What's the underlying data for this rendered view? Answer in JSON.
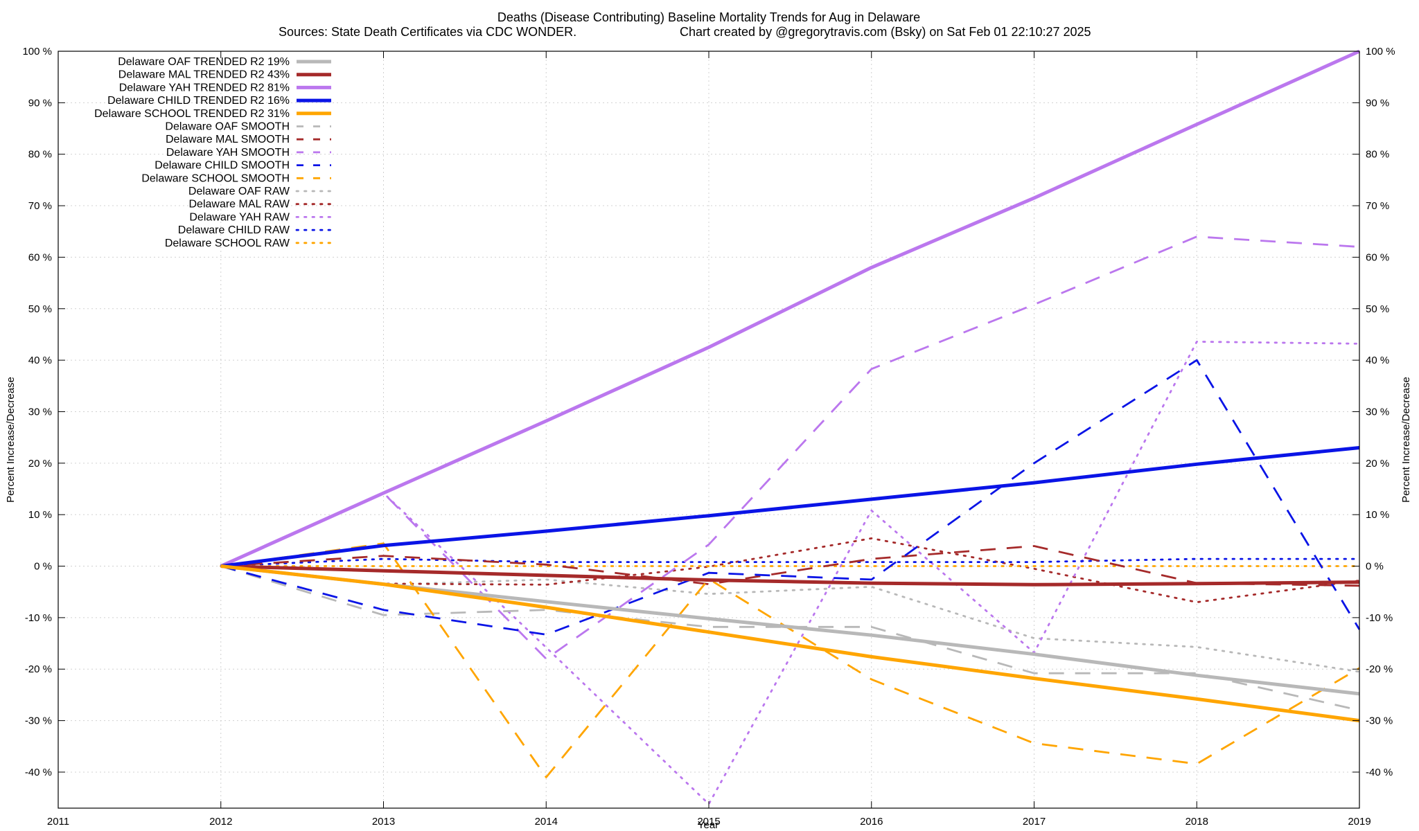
{
  "chart_data": {
    "type": "line",
    "title_line1": "Deaths (Disease Contributing)  Baseline Mortality Trends for Aug in Delaware",
    "title_line2_left": "Sources: State Death Certificates via CDC WONDER.",
    "title_line2_right": "Chart created by @gregorytravis.com (Bsky) on Sat Feb 01 22:10:27 2025",
    "xlabel": "Year",
    "ylabel": "Percent Increase/Decrease",
    "y2label": "Percent Increase/Decrease",
    "xlim": [
      2011,
      2019
    ],
    "ylim": [
      -47,
      100
    ],
    "x_ticks": [
      2011,
      2012,
      2013,
      2014,
      2015,
      2016,
      2017,
      2018,
      2019
    ],
    "x_tick_labels": [
      "2011",
      "2012",
      "2013",
      "2014",
      "2015",
      "2016",
      "2017",
      "2018",
      "2019"
    ],
    "y_ticks": [
      -40,
      -30,
      -20,
      -10,
      0,
      10,
      20,
      30,
      40,
      50,
      60,
      70,
      80,
      90,
      100
    ],
    "y_tick_labels": [
      "-40 %",
      "-30 %",
      "-20 %",
      "-10 %",
      "0 %",
      "10 %",
      "20 %",
      "30 %",
      "40 %",
      "50 %",
      "60 %",
      "70 %",
      "80 %",
      "90 %",
      "100 %"
    ],
    "grid": true,
    "legend_position": "top-left",
    "series": [
      {
        "name": "Delaware OAF TRENDED R2  19%",
        "style": "solid",
        "color": "#b8b8b8",
        "x": [
          2012,
          2013,
          2014,
          2015,
          2016,
          2017,
          2018,
          2019
        ],
        "values": [
          0,
          -3.5,
          -6.9,
          -10.2,
          -13.4,
          -17.1,
          -21.2,
          -24.8
        ]
      },
      {
        "name": "Delaware MAL TRENDED R2  43%",
        "style": "solid",
        "color": "#a52a2a",
        "x": [
          2012,
          2013,
          2014,
          2015,
          2016,
          2017,
          2018,
          2019
        ],
        "values": [
          0,
          -0.9,
          -1.8,
          -2.7,
          -3.3,
          -3.6,
          -3.4,
          -3.1
        ]
      },
      {
        "name": "Delaware YAH TRENDED R2  81%",
        "style": "solid",
        "color": "#bb77ee",
        "x": [
          2012,
          2013,
          2014,
          2015,
          2016,
          2017,
          2018,
          2019
        ],
        "values": [
          0,
          14.2,
          28.2,
          42.5,
          58,
          71.5,
          85.8,
          100
        ]
      },
      {
        "name": "Delaware CHILD TRENDED R2  16%",
        "style": "solid",
        "color": "#0a14e6",
        "x": [
          2012,
          2013,
          2014,
          2015,
          2016,
          2017,
          2018,
          2019
        ],
        "values": [
          0,
          4,
          6.8,
          9.8,
          13,
          16.2,
          19.8,
          23
        ]
      },
      {
        "name": "Delaware SCHOOL TRENDED R2  31%",
        "style": "solid",
        "color": "#ffa500",
        "x": [
          2012,
          2013,
          2014,
          2015,
          2016,
          2017,
          2018,
          2019
        ],
        "values": [
          0,
          -3.5,
          -8,
          -12.8,
          -17.6,
          -21.8,
          -25.8,
          -30
        ]
      },
      {
        "name": "Delaware OAF SMOOTH",
        "style": "dashed",
        "color": "#b8b8b8",
        "x": [
          2012,
          2013,
          2014,
          2015,
          2016,
          2017,
          2018,
          2019
        ],
        "values": [
          0,
          -9.5,
          -8.5,
          -11.8,
          -11.8,
          -20.8,
          -20.8,
          -28
        ]
      },
      {
        "name": "Delaware MAL SMOOTH",
        "style": "dashed",
        "color": "#a52a2a",
        "x": [
          2012,
          2013,
          2014,
          2015,
          2016,
          2017,
          2018,
          2019
        ],
        "values": [
          0,
          2,
          0.3,
          -3.5,
          1.4,
          3.9,
          -3.3,
          -3.8
        ]
      },
      {
        "name": "Delaware YAH SMOOTH",
        "style": "dashed",
        "color": "#bb77ee",
        "x": [
          2012,
          2013,
          2014,
          2015,
          2016,
          2017,
          2018,
          2019
        ],
        "values": [
          0,
          14.2,
          -18,
          4.2,
          38.3,
          50.8,
          64,
          62
        ]
      },
      {
        "name": "Delaware CHILD SMOOTH",
        "style": "dashed",
        "color": "#0a14e6",
        "x": [
          2012,
          2013,
          2014,
          2015,
          2016,
          2017,
          2018,
          2019
        ],
        "values": [
          0,
          -8.5,
          -13.3,
          -1.3,
          -2.6,
          20,
          40,
          -12.3
        ]
      },
      {
        "name": "Delaware SCHOOL SMOOTH",
        "style": "dashed",
        "color": "#ffa500",
        "x": [
          2012,
          2013,
          2014,
          2015,
          2016,
          2017,
          2018,
          2019
        ],
        "values": [
          0,
          4.4,
          -41,
          -2.5,
          -22,
          -34.4,
          -38.4,
          -19.8
        ]
      },
      {
        "name": "Delaware OAF RAW",
        "style": "dotted",
        "color": "#b8b8b8",
        "x": [
          2012,
          2013,
          2014,
          2015,
          2016,
          2017,
          2018,
          2019
        ],
        "values": [
          0,
          -3.6,
          -2.6,
          -5.4,
          -4,
          -14,
          -15.7,
          -20.5
        ]
      },
      {
        "name": "Delaware MAL RAW",
        "style": "dotted",
        "color": "#a52a2a",
        "x": [
          2012,
          2013,
          2014,
          2015,
          2016,
          2017,
          2018,
          2019
        ],
        "values": [
          0,
          -3.4,
          -3.6,
          -0.1,
          5.4,
          -0.5,
          -7,
          -2.8
        ]
      },
      {
        "name": "Delaware YAH RAW",
        "style": "dotted",
        "color": "#bb77ee",
        "x": [
          2012,
          2013,
          2014,
          2015,
          2016,
          2017,
          2018,
          2019
        ],
        "values": [
          0,
          14.2,
          -15.8,
          -46.2,
          10.8,
          -16.8,
          43.6,
          43.2
        ]
      },
      {
        "name": "Delaware CHILD RAW",
        "style": "dotted",
        "color": "#0a14e6",
        "x": [
          2012,
          2013,
          2014,
          2015,
          2016,
          2017,
          2018,
          2019
        ],
        "values": [
          0,
          1.4,
          0.8,
          0.8,
          0.8,
          0.8,
          1.4,
          1.4
        ]
      },
      {
        "name": "Delaware SCHOOL RAW",
        "style": "dotted",
        "color": "#ffa500",
        "x": [
          2012,
          2013,
          2014,
          2015,
          2016,
          2017,
          2018,
          2019
        ],
        "values": [
          0,
          0,
          0,
          0,
          0,
          0,
          0,
          0
        ]
      }
    ]
  }
}
